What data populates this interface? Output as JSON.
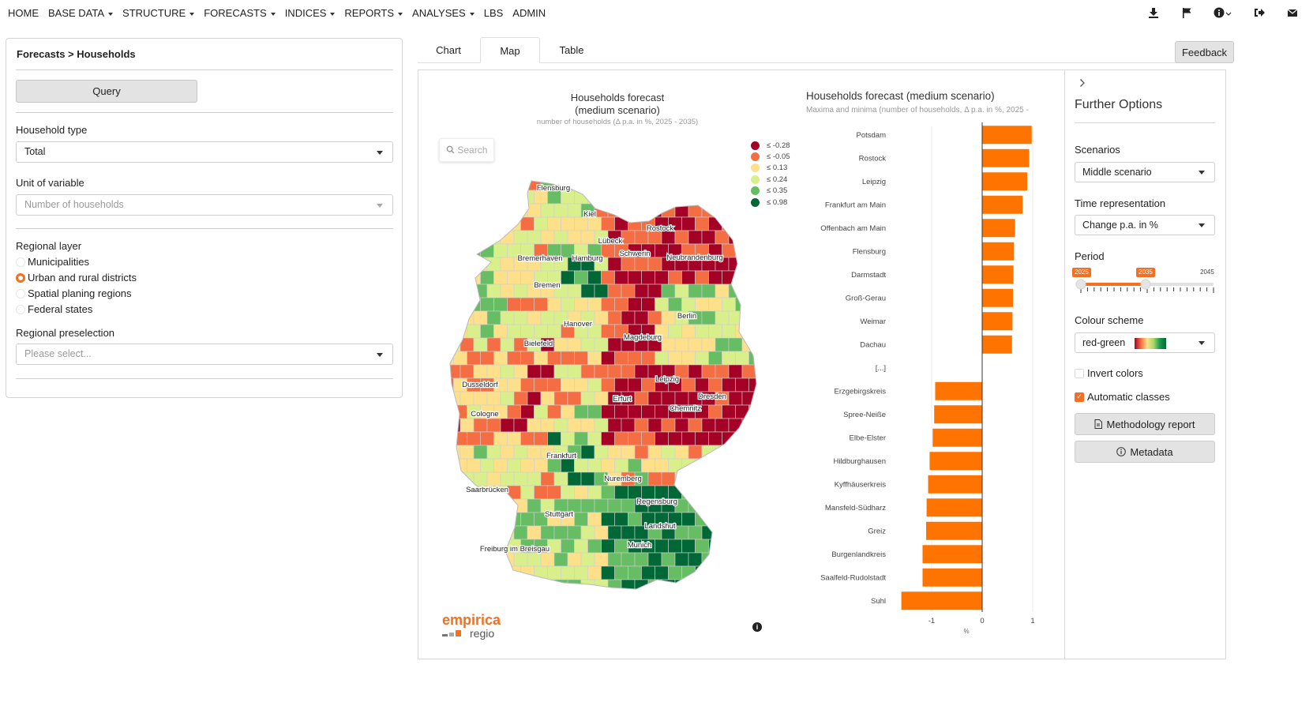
{
  "nav": {
    "items": [
      {
        "label": "HOME",
        "caret": false
      },
      {
        "label": "BASE DATA",
        "caret": true
      },
      {
        "label": "STRUCTURE",
        "caret": true
      },
      {
        "label": "FORECASTS",
        "caret": true
      },
      {
        "label": "INDICES",
        "caret": true
      },
      {
        "label": "REPORTS",
        "caret": true
      },
      {
        "label": "ANALYSES",
        "caret": true
      },
      {
        "label": "LBS",
        "caret": false
      },
      {
        "label": "ADMIN",
        "caret": false
      }
    ],
    "tools": [
      "download-icon",
      "flag-icon",
      "info-circle-icon",
      "logout-icon",
      "envelope-icon"
    ]
  },
  "left": {
    "breadcrumb": "Forecasts > Households",
    "query_label": "Query",
    "household_type_label": "Household type",
    "household_type_value": "Total",
    "unit_label": "Unit of variable",
    "unit_value": "Number of households",
    "regional_layer_label": "Regional layer",
    "layers": [
      {
        "label": "Municipalities",
        "selected": false
      },
      {
        "label": "Urban and rural districts",
        "selected": true
      },
      {
        "label": "Spatial planing regions",
        "selected": false
      },
      {
        "label": "Federal states",
        "selected": false
      }
    ],
    "preselection_label": "Regional preselection",
    "preselection_placeholder": "Please select..."
  },
  "tabs": [
    {
      "label": "Chart",
      "active": false
    },
    {
      "label": "Map",
      "active": true
    },
    {
      "label": "Table",
      "active": false
    }
  ],
  "feedback_label": "Feedback",
  "map": {
    "title_line1": "Households forecast",
    "title_line2": "(medium scenario)",
    "subtitle": "number of households (Δ p.a. in %, 2025 - 2035)",
    "search_placeholder": "Search",
    "legend": [
      {
        "label": "≤ -0.28",
        "color": "#a50026"
      },
      {
        "label": "≤ -0.05",
        "color": "#f46d43"
      },
      {
        "label": "≤ 0.13",
        "color": "#fee08b"
      },
      {
        "label": "≤ 0.24",
        "color": "#d9ef8b"
      },
      {
        "label": "≤ 0.35",
        "color": "#66bd63"
      },
      {
        "label": "≤ 0.98",
        "color": "#006837"
      }
    ],
    "cities": [
      {
        "name": "Flensburg"
      },
      {
        "name": "Kiel"
      },
      {
        "name": "Lübeck"
      },
      {
        "name": "Rostock"
      },
      {
        "name": "Bremerhaven"
      },
      {
        "name": "Hamburg"
      },
      {
        "name": "Schwerin"
      },
      {
        "name": "Neubrandenburg"
      },
      {
        "name": "Bremen"
      },
      {
        "name": "Berlin"
      },
      {
        "name": "Hanover"
      },
      {
        "name": "Magdeburg"
      },
      {
        "name": "Bielefeld"
      },
      {
        "name": "Leipzig"
      },
      {
        "name": "Dusseldorf"
      },
      {
        "name": "Dresden"
      },
      {
        "name": "Cologne"
      },
      {
        "name": "Erfurt"
      },
      {
        "name": "Chemnitz"
      },
      {
        "name": "Frankfurt"
      },
      {
        "name": "Nuremberg"
      },
      {
        "name": "Saarbrücken"
      },
      {
        "name": "Regensburg"
      },
      {
        "name": "Stuttgart"
      },
      {
        "name": "Landshut"
      },
      {
        "name": "Munich"
      },
      {
        "name": "Freiburg im Breisgau"
      }
    ],
    "brand_top": "empirica",
    "brand_bottom": "regio"
  },
  "chart_data": {
    "type": "bar",
    "orientation": "horizontal",
    "title": "Households forecast (medium scenario)",
    "subtitle": "Maxima and minima (number of households, Δ p.a. in %, 2025 -",
    "xlabel": "%",
    "xlim": [
      -1.6,
      1.1
    ],
    "xticks": [
      -1,
      0,
      1
    ],
    "categories": [
      "Potsdam",
      "Rostock",
      "Leipzig",
      "Frankfurt am Main",
      "Offenbach am Main",
      "Flensburg",
      "Darmstadt",
      "Groß-Gerau",
      "Weimar",
      "Dachau",
      "[...]",
      "Erzgebirgskreis",
      "Spree-Neiße",
      "Elbe-Elster",
      "Hildburghausen",
      "Kyffhäuserkreis",
      "Mansfeld-Südharz",
      "Greiz",
      "Burgenlandkreis",
      "Saalfeld-Rudolstadt",
      "Suhl"
    ],
    "values": [
      0.98,
      0.93,
      0.89,
      0.8,
      0.65,
      0.63,
      0.62,
      0.61,
      0.6,
      0.59,
      null,
      -0.93,
      -0.95,
      -0.98,
      -1.04,
      -1.07,
      -1.1,
      -1.11,
      -1.18,
      -1.18,
      -1.6
    ],
    "color": "#ff7400"
  },
  "right": {
    "title": "Further Options",
    "scenarios_label": "Scenarios",
    "scenario_value": "Middle scenario",
    "time_label": "Time representation",
    "time_value": "Change p.a. in %",
    "period_label": "Period",
    "period_start": "2025",
    "period_end": "2035",
    "period_max": "2045",
    "colour_label": "Colour scheme",
    "colour_value": "red-green",
    "invert_label": "Invert colors",
    "invert_checked": false,
    "auto_label": "Automatic classes",
    "auto_checked": true,
    "methodology_label": "Methodology report",
    "metadata_label": "Metadata"
  }
}
